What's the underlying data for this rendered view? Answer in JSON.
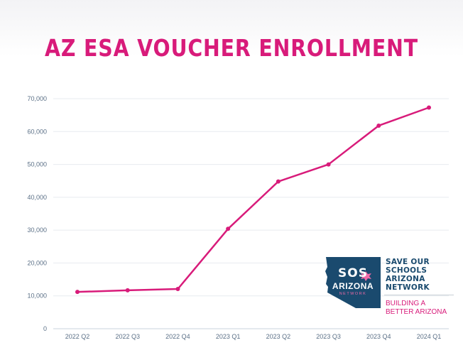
{
  "chart_data": {
    "type": "line",
    "title": "AZ ESA VOUCHER ENROLLMENT",
    "categories": [
      "2022 Q2",
      "2022 Q3",
      "2022 Q4",
      "2023 Q1",
      "2023 Q2",
      "2023 Q3",
      "2023 Q4",
      "2024 Q1"
    ],
    "values": [
      11200,
      11700,
      12100,
      30400,
      44800,
      50000,
      61800,
      67300
    ],
    "ylim": [
      0,
      70000
    ],
    "yticks": [
      "0",
      "10,000",
      "20,000",
      "30,000",
      "40,000",
      "50,000",
      "60,000",
      "70,000"
    ],
    "grid": true,
    "line_color": "#d81b7a"
  },
  "logo": {
    "mark_top": "SOS",
    "mark_middle": "ARIZONA",
    "mark_bottom": "NETWORK",
    "name_lines": [
      "SAVE OUR",
      "SCHOOLS",
      "ARIZONA",
      "NETWORK"
    ],
    "tagline_lines": [
      "BUILDING A",
      "BETTER ARIZONA"
    ],
    "primary_color": "#1a4a6e",
    "accent_color": "#d81b7a"
  }
}
